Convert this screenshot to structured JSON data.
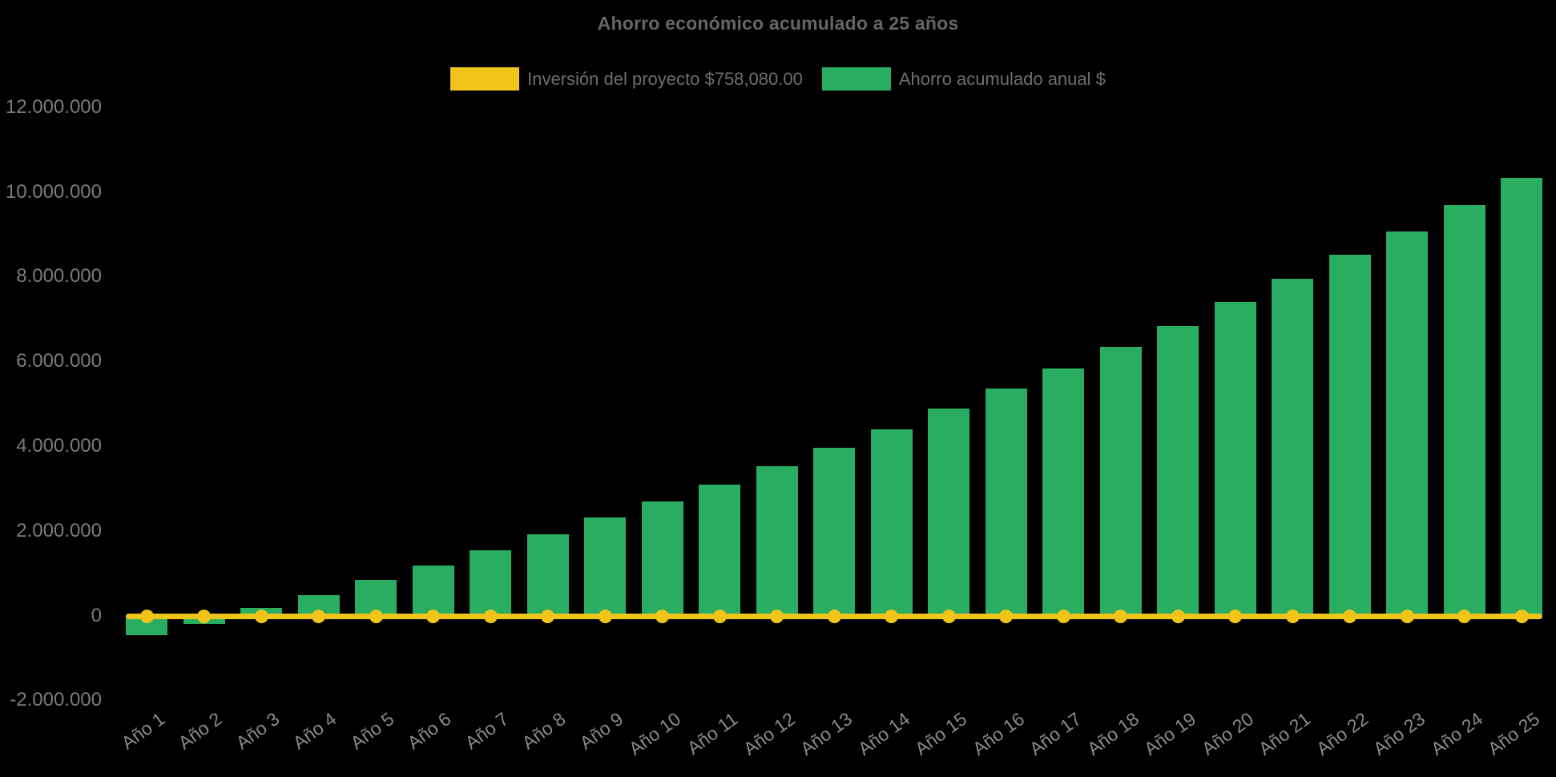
{
  "title": "Ahorro económico acumulado a 25 años",
  "legend": {
    "items": [
      {
        "label": "Inversión del proyecto $758,080.00",
        "color": "#F0C419",
        "series": "line"
      },
      {
        "label": "Ahorro acumulado anual $",
        "color": "#29AD60",
        "series": "bar"
      }
    ]
  },
  "axes": {
    "y_tick_labels": [
      "12.000.000",
      "10.000.000",
      "8.000.000",
      "6.000.000",
      "4.000.000",
      "2.000.000",
      "0",
      "-2.000.000"
    ],
    "y_tick_values": [
      12000000,
      10000000,
      8000000,
      6000000,
      4000000,
      2000000,
      0,
      -2000000
    ],
    "x_tick_labels": [
      "Año 1",
      "Año 2",
      "Año 3",
      "Año 4",
      "Año 5",
      "Año 6",
      "Año 7",
      "Año 8",
      "Año 9",
      "Año 10",
      "Año 11",
      "Año 12",
      "Año 13",
      "Año 14",
      "Año 15",
      "Año 16",
      "Año 17",
      "Año 18",
      "Año 19",
      "Año 20",
      "Año 21",
      "Año 22",
      "Año 23",
      "Año 24",
      "Año 25"
    ]
  },
  "chart_data": {
    "type": "bar",
    "title": "Ahorro económico acumulado a 25 años",
    "background": "#000000",
    "grid": false,
    "legend_position": "top",
    "ylim": [
      -2000000,
      12000000
    ],
    "y_ticks": [
      12000000,
      10000000,
      8000000,
      6000000,
      4000000,
      2000000,
      0,
      -2000000
    ],
    "categories": [
      "Año 1",
      "Año 2",
      "Año 3",
      "Año 4",
      "Año 5",
      "Año 6",
      "Año 7",
      "Año 8",
      "Año 9",
      "Año 10",
      "Año 11",
      "Año 12",
      "Año 13",
      "Año 14",
      "Año 15",
      "Año 16",
      "Año 17",
      "Año 18",
      "Año 19",
      "Año 20",
      "Año 21",
      "Año 22",
      "Año 23",
      "Año 24",
      "Año 25"
    ],
    "series": [
      {
        "name": "Inversión del proyecto $758,080.00",
        "type": "line",
        "color": "#F0C419",
        "investment_value": 758080,
        "values": [
          0,
          0,
          0,
          0,
          0,
          0,
          0,
          0,
          0,
          0,
          0,
          0,
          0,
          0,
          0,
          0,
          0,
          0,
          0,
          0,
          0,
          0,
          0,
          0,
          0
        ]
      },
      {
        "name": "Ahorro acumulado anual $",
        "type": "bar",
        "color": "#29AD60",
        "values": [
          -470000,
          -200000,
          180000,
          490000,
          840000,
          1180000,
          1540000,
          1920000,
          2310000,
          2700000,
          3100000,
          3530000,
          3960000,
          4400000,
          4880000,
          5350000,
          5830000,
          6340000,
          6840000,
          7400000,
          7940000,
          8510000,
          9070000,
          9680000,
          10330000
        ]
      }
    ]
  }
}
